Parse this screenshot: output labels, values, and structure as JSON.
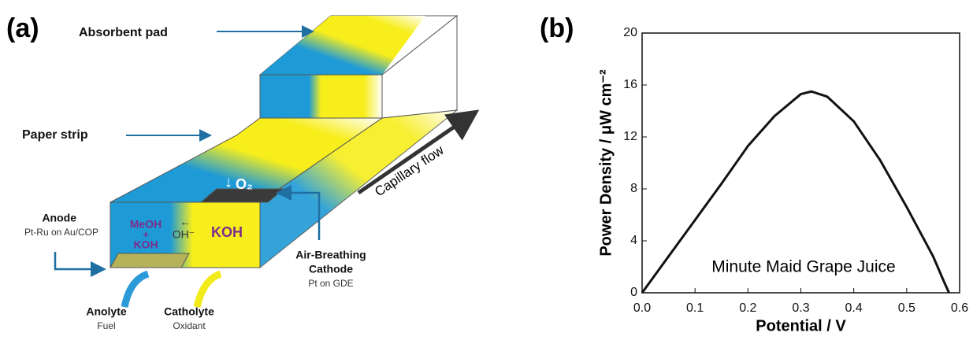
{
  "panel_a": {
    "label": "(a)",
    "absorbent_pad": "Absorbent pad",
    "paper_strip": "Paper strip",
    "capillary_flow": "Capillary flow",
    "anode": "Anode",
    "anode_sub": "Pt-Ru on Au/COP",
    "meoh": "MeOH",
    "plus": "+",
    "koh_left": "KOH",
    "arrow_left": "←",
    "oh": "OH⁻",
    "koh_right": "KOH",
    "o2_arrow": "↓",
    "o2": "O₂",
    "cathode_1": "Air-Breathing",
    "cathode_2": "Cathode",
    "cathode_sub": "Pt on GDE",
    "anolyte": "Anolyte",
    "anolyte_sub": "Fuel",
    "catholyte": "Catholyte",
    "catholyte_sub": "Oxidant"
  },
  "chart_data": {
    "type": "line",
    "panel_label": "(b)",
    "xlabel": "Potential / V",
    "ylabel": "Power Density / μW cm⁻²",
    "annotation": "Minute Maid Grape Juice",
    "x": [
      0,
      0.05,
      0.1,
      0.15,
      0.2,
      0.25,
      0.3,
      0.32,
      0.35,
      0.4,
      0.45,
      0.5,
      0.55,
      0.57,
      0.58
    ],
    "values": [
      0,
      2.8,
      5.6,
      8.4,
      11.3,
      13.6,
      15.3,
      15.5,
      15.1,
      13.2,
      10.2,
      6.6,
      2.8,
      0.9,
      0
    ],
    "color": "#111111",
    "xlim": [
      0,
      0.6
    ],
    "xticks": [
      {
        "value": 0,
        "label": "0.0"
      },
      0.1,
      0.2,
      0.3,
      0.4,
      0.5,
      0.6
    ],
    "ylim": [
      0,
      20
    ],
    "yticks": [
      0,
      4,
      8,
      12,
      16,
      20
    ]
  }
}
